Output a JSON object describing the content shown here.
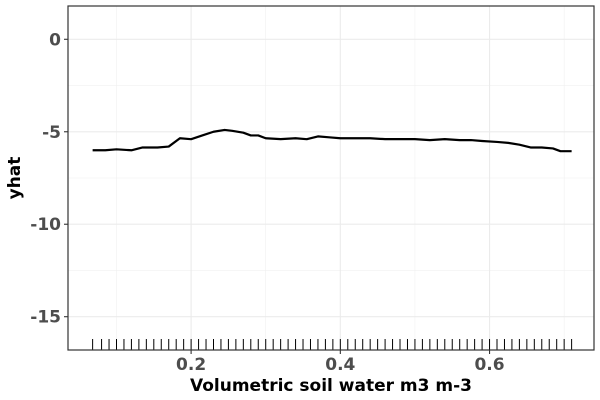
{
  "chart_data": {
    "type": "line",
    "title": "",
    "xlabel": "Volumetric soil water m3 m-3",
    "ylabel": "yhat",
    "xlim": [
      0.035,
      0.74
    ],
    "ylim": [
      -16.8,
      1.8
    ],
    "xticks": [
      0.2,
      0.4,
      0.6
    ],
    "xtick_labels": [
      "0.2",
      "0.4",
      "0.6"
    ],
    "yticks": [
      0,
      -5,
      -10,
      -15
    ],
    "ytick_labels": [
      "0",
      "-5",
      "-10",
      "-15"
    ],
    "grid": true,
    "legend": "none",
    "series": [
      {
        "color": "#000000",
        "x": [
          0.068,
          0.085,
          0.1,
          0.12,
          0.135,
          0.155,
          0.17,
          0.185,
          0.2,
          0.215,
          0.23,
          0.245,
          0.255,
          0.27,
          0.28,
          0.29,
          0.3,
          0.32,
          0.34,
          0.355,
          0.37,
          0.385,
          0.4,
          0.42,
          0.44,
          0.46,
          0.48,
          0.5,
          0.52,
          0.54,
          0.56,
          0.575,
          0.59,
          0.61,
          0.625,
          0.64,
          0.655,
          0.67,
          0.685,
          0.695,
          0.71
        ],
        "y": [
          -6.0,
          -6.0,
          -5.95,
          -6.0,
          -5.85,
          -5.85,
          -5.8,
          -5.35,
          -5.4,
          -5.2,
          -5.0,
          -4.9,
          -4.95,
          -5.05,
          -5.2,
          -5.2,
          -5.35,
          -5.4,
          -5.35,
          -5.4,
          -5.25,
          -5.3,
          -5.35,
          -5.35,
          -5.35,
          -5.4,
          -5.4,
          -5.4,
          -5.45,
          -5.4,
          -5.45,
          -5.45,
          -5.5,
          -5.55,
          -5.6,
          -5.7,
          -5.85,
          -5.85,
          -5.9,
          -6.05,
          -6.05
        ]
      }
    ],
    "rug_x": [
      0.068,
      0.08,
      0.09,
      0.1,
      0.11,
      0.12,
      0.13,
      0.14,
      0.15,
      0.16,
      0.17,
      0.18,
      0.19,
      0.2,
      0.21,
      0.22,
      0.23,
      0.24,
      0.25,
      0.26,
      0.27,
      0.28,
      0.29,
      0.3,
      0.31,
      0.32,
      0.33,
      0.34,
      0.35,
      0.36,
      0.37,
      0.38,
      0.39,
      0.4,
      0.41,
      0.42,
      0.43,
      0.44,
      0.45,
      0.46,
      0.47,
      0.48,
      0.49,
      0.5,
      0.51,
      0.52,
      0.53,
      0.54,
      0.55,
      0.56,
      0.57,
      0.58,
      0.59,
      0.6,
      0.61,
      0.62,
      0.63,
      0.64,
      0.65,
      0.66,
      0.67,
      0.68,
      0.69,
      0.7,
      0.71
    ]
  }
}
